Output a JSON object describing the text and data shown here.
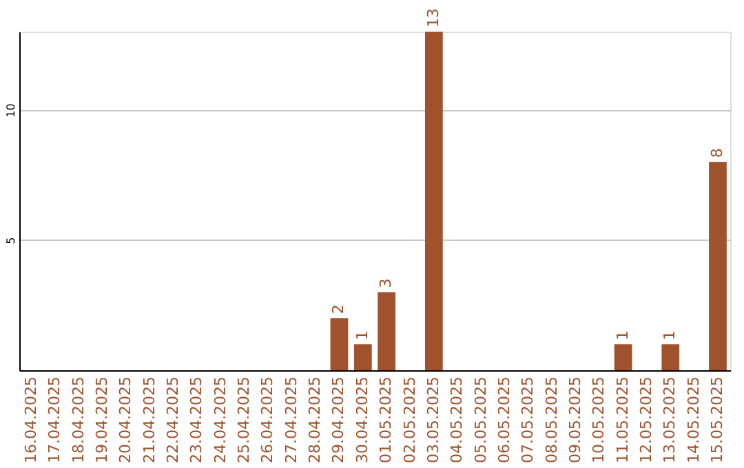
{
  "chart_data": {
    "type": "bar",
    "categories": [
      "16.04.2025",
      "17.04.2025",
      "18.04.2025",
      "19.04.2025",
      "20.04.2025",
      "21.04.2025",
      "22.04.2025",
      "23.04.2025",
      "24.04.2025",
      "25.04.2025",
      "26.04.2025",
      "27.04.2025",
      "28.04.2025",
      "29.04.2025",
      "30.04.2025",
      "01.05.2025",
      "02.05.2025",
      "03.05.2025",
      "04.05.2025",
      "05.05.2025",
      "06.05.2025",
      "07.05.2025",
      "08.05.2025",
      "09.05.2025",
      "10.05.2025",
      "11.05.2025",
      "12.05.2025",
      "13.05.2025",
      "14.05.2025",
      "15.05.2025"
    ],
    "values": [
      0,
      0,
      0,
      0,
      0,
      0,
      0,
      0,
      0,
      0,
      0,
      0,
      0,
      2,
      1,
      3,
      0,
      13,
      0,
      0,
      0,
      0,
      0,
      0,
      0,
      1,
      0,
      1,
      0,
      8
    ],
    "value_labels": [
      null,
      null,
      null,
      null,
      null,
      null,
      null,
      null,
      null,
      null,
      null,
      null,
      null,
      "2",
      "1",
      "3",
      null,
      "13",
      null,
      null,
      null,
      null,
      null,
      null,
      null,
      "1",
      null,
      "1",
      null,
      "8"
    ],
    "color": "#a0522d",
    "ylim": [
      0,
      13
    ],
    "yticks": [
      5,
      10
    ],
    "grid": "y"
  }
}
